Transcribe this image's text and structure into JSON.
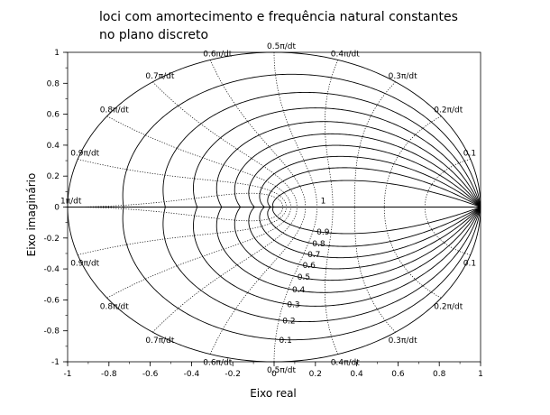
{
  "chart_data": {
    "type": "line",
    "title": "loci com amortecimento e frequência natural constantes\nno plano discreto",
    "xlabel": "Eixo real",
    "ylabel": "Eixo imaginário",
    "xlim": [
      -1,
      1
    ],
    "ylim": [
      -1,
      1
    ],
    "x_ticks": [
      "-1",
      "-0.8",
      "-0.6",
      "-0.4",
      "-0.2",
      "0",
      "0.2",
      "0.4",
      "0.6",
      "0.8",
      "1"
    ],
    "y_ticks": [
      "-1",
      "-0.8",
      "-0.6",
      "-0.4",
      "-0.2",
      "0",
      "0.2",
      "0.4",
      "0.6",
      "0.8",
      "1"
    ],
    "grid": false,
    "damping_ratios": [
      0,
      0.1,
      0.2,
      0.3,
      0.4,
      0.5,
      0.6,
      0.7,
      0.8,
      0.9,
      1
    ],
    "damping_labels": [
      "0.1",
      "0.2",
      "0.3",
      "0.4",
      "0.5",
      "0.6",
      "0.7",
      "0.8",
      "0.9",
      "1"
    ],
    "natural_frequencies_pi_over_dt": [
      0.1,
      0.2,
      0.3,
      0.4,
      0.5,
      0.6,
      0.7,
      0.8,
      0.9,
      1.0
    ],
    "frequency_labels_upper": [
      "0.1",
      "0.2π/dt",
      "0.3π/dt",
      "0.4π/dt",
      "0.5π/dt",
      "0.6π/dt",
      "0.7π/dt",
      "0.8π/dt",
      "0.9π/dt",
      "1π/dt"
    ],
    "frequency_labels_lower": [
      "0.1",
      "0.2π/dt",
      "0.3π/dt",
      "0.4π/dt",
      "0.5π/dt",
      "0.6π/dt",
      "0.7π/dt",
      "0.8π/dt",
      "0.9π/dt"
    ],
    "series": [
      {
        "name": "",
        "style": "solid",
        "color": "#000000"
      },
      {
        "name": "",
        "style": "dotted",
        "color": "#000000"
      }
    ]
  }
}
